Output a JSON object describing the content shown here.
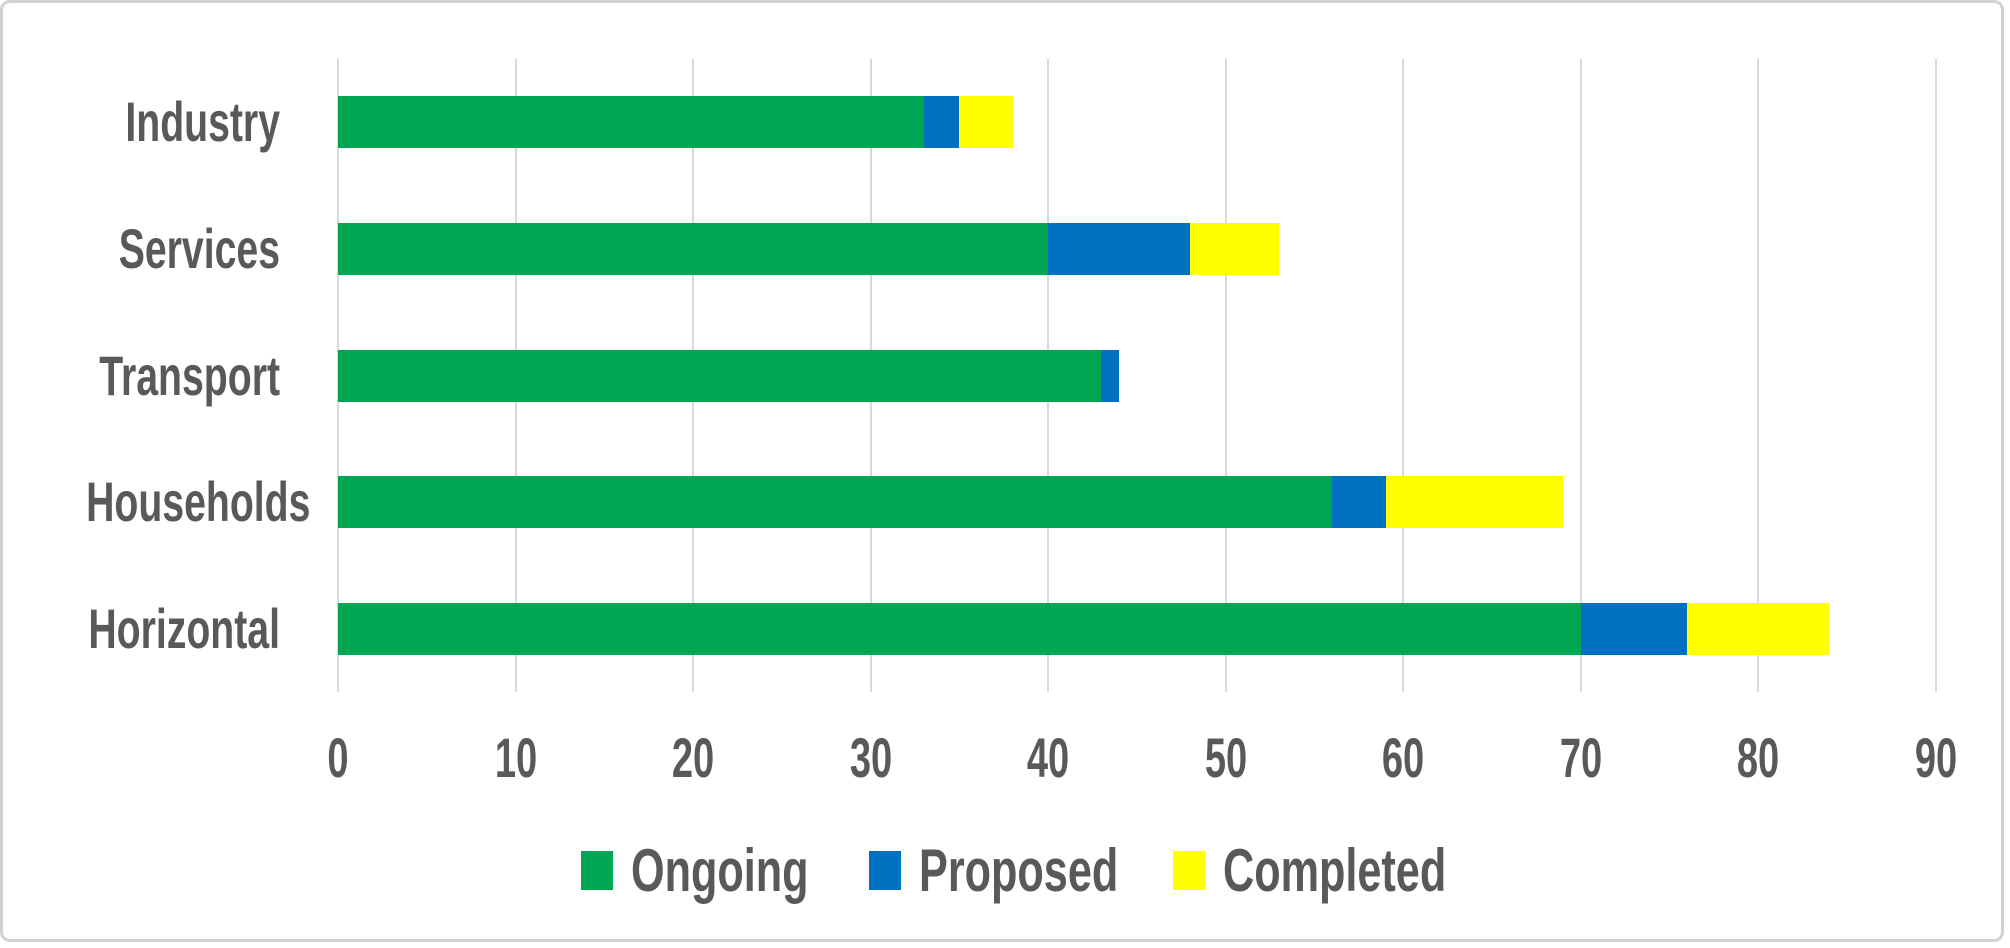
{
  "chart_data": {
    "type": "bar",
    "orientation": "horizontal",
    "stacked": true,
    "title": "",
    "xlabel": "",
    "ylabel": "",
    "categories": [
      "Industry",
      "Services",
      "Transport",
      "Households",
      "Horizontal"
    ],
    "series": [
      {
        "name": "Ongoing",
        "color": "#00A651",
        "values": [
          33,
          40,
          43,
          56,
          70
        ]
      },
      {
        "name": "Proposed",
        "color": "#0070C0",
        "values": [
          2,
          8,
          1,
          3,
          6
        ]
      },
      {
        "name": "Completed",
        "color": "#FFFF00",
        "values": [
          3,
          5,
          0,
          10,
          8
        ]
      }
    ],
    "stack_totals": [
      38,
      53,
      44,
      69,
      84
    ],
    "x_ticks": [
      "0",
      "10",
      "20",
      "30",
      "40",
      "50",
      "60",
      "70",
      "80",
      "90"
    ],
    "xlim": [
      0,
      90
    ],
    "grid": "vertical-only",
    "legend_position": "bottom-center",
    "colors": {
      "axis_text": "#595959",
      "gridline": "#D9D9D9",
      "border": "#D2D2D2",
      "background": "#FFFFFF"
    }
  }
}
